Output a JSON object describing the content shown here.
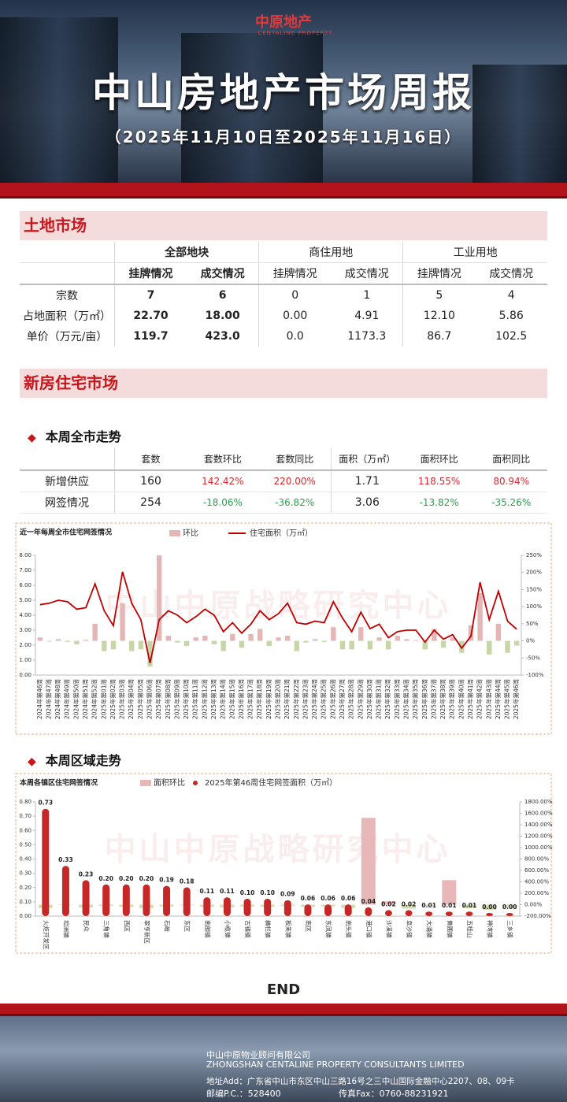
{
  "header": {
    "logo": "中原地产",
    "logo_en": "CENTALINE PROPERTY",
    "title": "中山房地产市场周报",
    "subtitle": "（2025年11月10日至2025年11月16日）"
  },
  "land_market": {
    "title": "土地市场",
    "groups": [
      {
        "name": "全部地块",
        "columns": [
          "挂牌情况",
          "成交情况"
        ]
      },
      {
        "name": "商住用地",
        "columns": [
          "挂牌情况",
          "成交情况"
        ]
      },
      {
        "name": "工业用地",
        "columns": [
          "挂牌情况",
          "成交情况"
        ]
      }
    ],
    "rows": [
      {
        "label": "宗数",
        "values": [
          "7",
          "6",
          "0",
          "1",
          "5",
          "4"
        ]
      },
      {
        "label": "占地面积（万㎡）",
        "values": [
          "22.70",
          "18.00",
          "0.00",
          "4.91",
          "12.10",
          "5.86"
        ]
      },
      {
        "label": "单价（万元/亩）",
        "values": [
          "119.7",
          "423.0",
          "0.0",
          "1173.3",
          "86.7",
          "102.5"
        ]
      }
    ]
  },
  "new_home": {
    "title": "新房住宅市场",
    "weekly": {
      "title": "本周全市走势",
      "headers": [
        "套数",
        "套数环比",
        "套数同比",
        "面积（万㎡）",
        "面积环比",
        "面积同比"
      ],
      "rows": [
        {
          "label": "新增供应",
          "values": [
            "160",
            "142.42%",
            "220.00%",
            "1.71",
            "118.55%",
            "80.94%"
          ]
        },
        {
          "label": "网签情况",
          "values": [
            "254",
            "-18.06%",
            "-36.82%",
            "3.06",
            "-13.82%",
            "-35.26%"
          ]
        }
      ]
    },
    "district_title": "本周区域走势"
  },
  "watermark": "中山中原战略研究中心",
  "chart_data": [
    {
      "type": "combo",
      "title": "近一年每周全市住宅网签情况",
      "categories": [
        "2024年第46周",
        "2024年第47周",
        "2024年第48周",
        "2024年第49周",
        "2024年第50周",
        "2024年第51周",
        "2024年第52周",
        "2025年第01周",
        "2025年第02周",
        "2025年第03周",
        "2025年第04周",
        "2025年第05周",
        "2025年第06周",
        "2025年第07周",
        "2025年第08周",
        "2025年第09周",
        "2025年第10周",
        "2025年第11周",
        "2025年第12周",
        "2025年第13周",
        "2025年第14周",
        "2025年第15周",
        "2025年第16周",
        "2025年第17周",
        "2025年第18周",
        "2025年第19周",
        "2025年第20周",
        "2025年第21周",
        "2025年第22周",
        "2025年第23周",
        "2025年第24周",
        "2025年第25周",
        "2025年第26周",
        "2025年第27周",
        "2025年第28周",
        "2025年第29周",
        "2025年第30周",
        "2025年第31周",
        "2025年第32周",
        "2025年第33周",
        "2025年第34周",
        "2025年第35周",
        "2025年第36周",
        "2025年第37周",
        "2025年第38周",
        "2025年第39周",
        "2025年第40周",
        "2025年第41周",
        "2025年第42周",
        "2025年第43周",
        "2025年第44周",
        "2025年第45周",
        "2025年第46周"
      ],
      "series": [
        {
          "name": "环比",
          "type": "bar",
          "axis": "y2",
          "color": "#e4b6b6",
          "negative_color": "#c6d6a6",
          "values": [
            10,
            -2,
            5,
            -3,
            -10,
            3,
            50,
            -30,
            -25,
            110,
            -30,
            -25,
            -75,
            250,
            15,
            -5,
            -15,
            10,
            15,
            -10,
            -30,
            20,
            -20,
            20,
            35,
            -15,
            10,
            15,
            -30,
            -5,
            5,
            -3,
            40,
            -25,
            -25,
            40,
            -25,
            10,
            -25,
            15,
            5,
            2,
            -25,
            35,
            -20,
            10,
            -35,
            45,
            140,
            -40,
            50,
            -35,
            -13.82
          ]
        },
        {
          "name": "住宅面积（万㎡）",
          "type": "line",
          "color": "#c00000",
          "values": [
            4.7,
            4.8,
            5.0,
            4.9,
            4.4,
            4.5,
            6.1,
            4.3,
            3.3,
            6.9,
            4.8,
            3.7,
            0.8,
            3.7,
            4.3,
            4.0,
            3.5,
            3.9,
            4.4,
            4.0,
            2.9,
            3.5,
            2.8,
            3.4,
            4.3,
            3.7,
            4.1,
            4.8,
            3.5,
            3.4,
            3.6,
            3.5,
            4.9,
            3.8,
            2.9,
            4.2,
            3.1,
            3.4,
            2.5,
            2.9,
            3.0,
            3.0,
            2.2,
            3.0,
            2.4,
            2.7,
            1.8,
            2.6,
            6.2,
            3.7,
            5.6,
            3.6,
            3.06
          ]
        }
      ],
      "ylim": [
        0,
        8
      ],
      "yticks": [
        {
          "value": 0,
          "label": "0.00"
        },
        {
          "value": 1,
          "label": "1.00"
        },
        {
          "value": 2,
          "label": "2.00"
        },
        {
          "value": 3,
          "label": "3.00"
        },
        {
          "value": 4,
          "label": "4.00"
        },
        {
          "value": 5,
          "label": "5.00"
        },
        {
          "value": 6,
          "label": "6.00"
        },
        {
          "value": 7,
          "label": "7.00"
        },
        {
          "value": 8,
          "label": "8.00"
        }
      ],
      "y2lim": [
        -100,
        250
      ],
      "y2ticks": [
        {
          "value": -100,
          "label": "-100%"
        },
        {
          "value": -50,
          "label": "-50%"
        },
        {
          "value": 0,
          "label": "0%"
        },
        {
          "value": 50,
          "label": "50%"
        },
        {
          "value": 100,
          "label": "100%"
        },
        {
          "value": 150,
          "label": "150%"
        },
        {
          "value": 200,
          "label": "200%"
        },
        {
          "value": 250,
          "label": "250%"
        }
      ]
    },
    {
      "type": "combo",
      "title": "本周各镇区住宅网签情况",
      "categories": [
        "火炬开发区",
        "坦洲镇",
        "民众",
        "三角镇",
        "西区",
        "翠亨新区",
        "石岐",
        "东区",
        "南朗镇",
        "小榄镇",
        "古镇镇",
        "横栏镇",
        "板芙镇",
        "南区",
        "东凤镇",
        "南头镇",
        "港口镇",
        "沙溪镇",
        "阜沙镇",
        "大涌镇",
        "黄圃镇",
        "五桂山",
        "神湾镇",
        "三乡镇"
      ],
      "series": [
        {
          "name": "面积环比",
          "type": "bar",
          "axis": "y2",
          "color": "#e8b8b8",
          "negative_color": "#d2deb4",
          "values": [
            -60,
            -5,
            -50,
            -20,
            -40,
            -60,
            -30,
            -10,
            -40,
            -50,
            -30,
            -40,
            -20,
            -40,
            -30,
            -60,
            1520,
            60,
            -70,
            -20,
            430,
            -60,
            -90,
            -50
          ]
        },
        {
          "name": "2025年第46周住宅网签面积（万㎡）",
          "type": "column",
          "color": "#c62828",
          "values": [
            0.73,
            0.33,
            0.23,
            0.2,
            0.2,
            0.2,
            0.19,
            0.18,
            0.11,
            0.11,
            0.1,
            0.1,
            0.09,
            0.06,
            0.06,
            0.06,
            0.04,
            0.02,
            0.02,
            0.01,
            0.01,
            0.01,
            0,
            0
          ],
          "value_labels": [
            "0.73",
            "0.33",
            "0.23",
            "0.20",
            "0.20",
            "0.20",
            "0.19",
            "0.18",
            "0.11",
            "0.11",
            "0.10",
            "0.10",
            "0.09",
            "0.06",
            "0.06",
            "0.06",
            "0.04",
            "0.02",
            "0.02",
            "0.01",
            "0.01",
            "0.01",
            "0.00",
            "0.00"
          ]
        }
      ],
      "ylim": [
        0,
        0.8
      ],
      "yticks": [
        {
          "value": 0,
          "label": "0.00"
        },
        {
          "value": 0.1,
          "label": "0.10"
        },
        {
          "value": 0.2,
          "label": "0.20"
        },
        {
          "value": 0.3,
          "label": "0.30"
        },
        {
          "value": 0.4,
          "label": "0.40"
        },
        {
          "value": 0.5,
          "label": "0.50"
        },
        {
          "value": 0.6,
          "label": "0.60"
        },
        {
          "value": 0.7,
          "label": "0.70"
        },
        {
          "value": 0.8,
          "label": "0.80"
        }
      ],
      "y2lim": [
        -200,
        1800
      ],
      "y2ticks": [
        {
          "value": -200,
          "label": "-200.00%"
        },
        {
          "value": 0,
          "label": "0.00%"
        },
        {
          "value": 200,
          "label": "200.00%"
        },
        {
          "value": 400,
          "label": "400.00%"
        },
        {
          "value": 600,
          "label": "600.00%"
        },
        {
          "value": 800,
          "label": "800.00%"
        },
        {
          "value": 1000,
          "label": "1000.00%"
        },
        {
          "value": 1200,
          "label": "1200.00%"
        },
        {
          "value": 1400,
          "label": "1400.00%"
        },
        {
          "value": 1600,
          "label": "1600.00%"
        },
        {
          "value": 1800,
          "label": "1800.00%"
        }
      ]
    }
  ],
  "end": "END",
  "footer": {
    "company": "中山中原物业顾问有限公司",
    "company_en": "ZHONGSHAN CENTALINE PROPERTY CONSULTANTS LIMITED",
    "address": "地址Add：广东省中山市东区中山三路16号之三中山国际金融中心2207、08、09卡",
    "postcode": "邮编P.C.：528400",
    "fax": "传真Fax：0760-88231921"
  }
}
